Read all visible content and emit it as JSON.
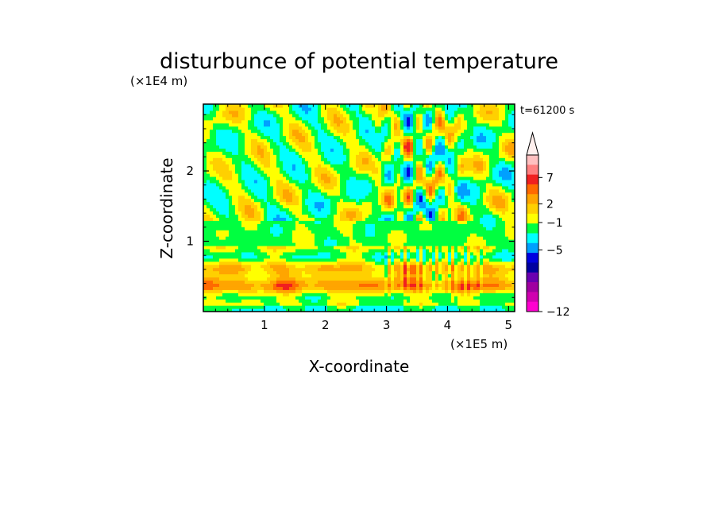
{
  "chart_data": {
    "type": "heatmap",
    "title": "disturbunce of potential temperature",
    "time_label": "t=61200 s",
    "x_axis": {
      "label": "X-coordinate",
      "unit_label": "(×1E5 m)",
      "range": [
        0,
        5.1
      ],
      "ticks": [
        1,
        2,
        3,
        4,
        5
      ],
      "tick_labels": [
        "1",
        "2",
        "3",
        "4",
        "5"
      ]
    },
    "y_axis": {
      "label": "Z-coordinate",
      "unit_label": "(×1E4 m)",
      "range": [
        0,
        2.95
      ],
      "ticks": [
        1,
        2
      ],
      "tick_labels": [
        "1",
        "2"
      ]
    },
    "colorbar": {
      "extend": "max",
      "labeled_levels": [
        7,
        2,
        -1,
        -5,
        -12
      ],
      "labels": [
        "7",
        "2",
        "−1",
        "−5",
        "−12"
      ],
      "colors_top_to_bottom": [
        "#ffc0c0",
        "#ff8080",
        "#f02020",
        "#ff6a00",
        "#ffa500",
        "#ffd000",
        "#ffff00",
        "#00ff40",
        "#00ffff",
        "#00a0ff",
        "#0000e0",
        "#0000a0",
        "#6a00b0",
        "#a000a0",
        "#d000b0",
        "#ff00d0"
      ]
    },
    "color_scale": [
      "#ff00d0",
      "#d000b0",
      "#a000a0",
      "#6a00b0",
      "#0000a0",
      "#0000e0",
      "#00a0ff",
      "#00ffff",
      "#00ff40",
      "#ffff00",
      "#ffd000",
      "#ffa500",
      "#ff6a00",
      "#f02020",
      "#ff8080",
      "#ffc0c0"
    ]
  }
}
